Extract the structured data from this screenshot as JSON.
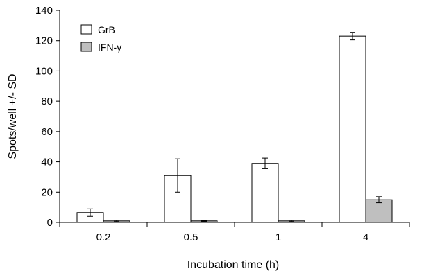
{
  "chart_data": {
    "type": "bar",
    "categories": [
      "0.2",
      "0.5",
      "1",
      "4"
    ],
    "series": [
      {
        "name": "GrB",
        "color": "#ffffff",
        "values": [
          6.5,
          31,
          39,
          123
        ],
        "errors": [
          2.5,
          11,
          3.5,
          2.5
        ]
      },
      {
        "name": "IFN-γ",
        "color": "#bfbfbf",
        "values": [
          1,
          1,
          1,
          15
        ],
        "errors": [
          0.5,
          0.3,
          0.5,
          2
        ]
      }
    ],
    "xlabel": "Incubation time (h)",
    "ylabel": "Spots/well +/- SD",
    "ylim": [
      0,
      140
    ],
    "yticks": [
      0,
      20,
      40,
      60,
      80,
      100,
      120,
      140
    ],
    "grid": false,
    "legend_position": "top-left"
  }
}
